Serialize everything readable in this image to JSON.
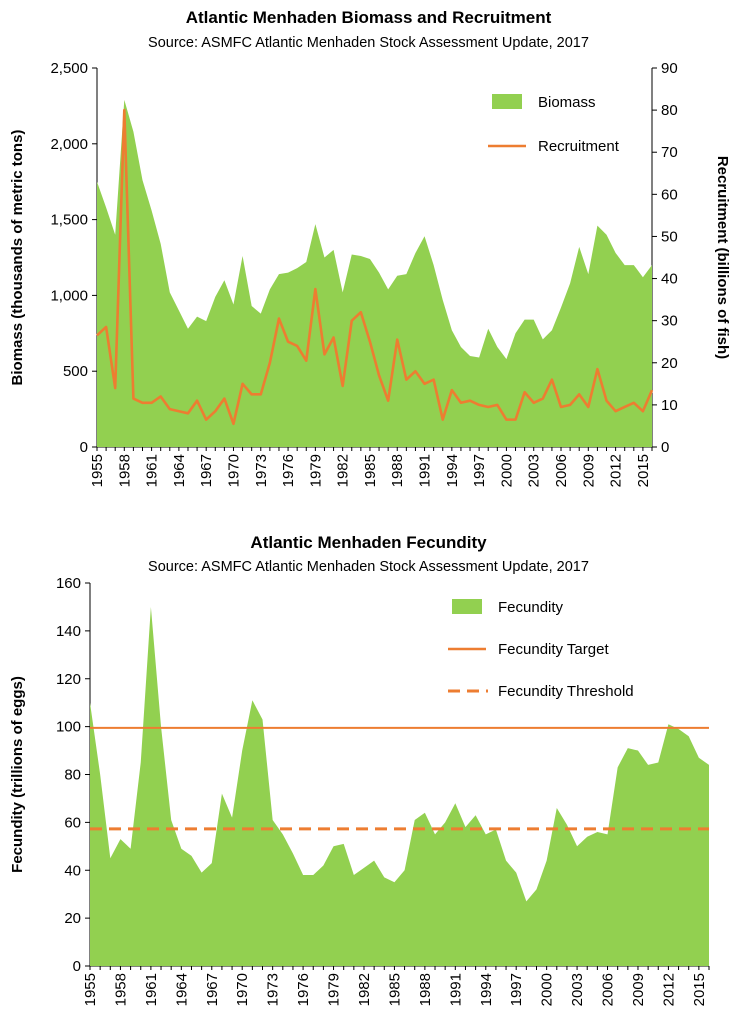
{
  "chart_data": [
    {
      "type": "area",
      "title": "Atlantic Menhaden Biomass and Recruitment",
      "subtitle": "Source: ASMFC Atlantic Menhaden Stock Assessment Update, 2017",
      "ylabel": "Biomass (thousands of metric tons)",
      "y2label": "Recruitment (billions of fish)",
      "ylim": [
        0,
        2500
      ],
      "y2lim": [
        0,
        90
      ],
      "yticks": [
        "0",
        "500",
        "1,000",
        "1,500",
        "2,000",
        "2,500"
      ],
      "y2ticks": [
        "0",
        "10",
        "20",
        "30",
        "40",
        "50",
        "60",
        "70",
        "80",
        "90"
      ],
      "xticks": [
        "1955",
        "1958",
        "1961",
        "1964",
        "1967",
        "1970",
        "1973",
        "1976",
        "1979",
        "1982",
        "1985",
        "1988",
        "1991",
        "1994",
        "1997",
        "2000",
        "2003",
        "2006",
        "2009",
        "2012",
        "2015"
      ],
      "x_start": 1955,
      "x_end": 2016,
      "legend_position": "top-right",
      "series": [
        {
          "name": "Biomass",
          "type": "area",
          "color": "#92d050",
          "axis": "left",
          "values": [
            1750,
            1580,
            1400,
            2290,
            2080,
            1760,
            1560,
            1340,
            1020,
            900,
            780,
            860,
            830,
            990,
            1100,
            940,
            1260,
            930,
            880,
            1040,
            1140,
            1150,
            1180,
            1220,
            1470,
            1250,
            1300,
            1020,
            1270,
            1260,
            1240,
            1150,
            1040,
            1130,
            1140,
            1280,
            1390,
            1200,
            970,
            770,
            660,
            600,
            590,
            780,
            660,
            580,
            750,
            840,
            840,
            710,
            770,
            920,
            1080,
            1320,
            1140,
            1460,
            1400,
            1280,
            1200,
            1200,
            1120,
            1200
          ]
        },
        {
          "name": "Recruitment",
          "type": "line",
          "color": "#ed7d31",
          "axis": "right",
          "values": [
            26.5,
            28.5,
            14,
            80,
            11.5,
            10.5,
            10.5,
            12,
            9,
            8.5,
            8,
            11,
            6.5,
            8.5,
            11.5,
            5.5,
            15,
            12.5,
            12.5,
            20,
            30.5,
            25,
            24,
            20.5,
            37.5,
            22,
            26,
            14.5,
            30,
            32,
            25,
            17,
            11,
            25.5,
            16,
            18,
            15,
            16,
            6.5,
            13.5,
            10.5,
            11,
            10,
            9.5,
            10,
            6.5,
            6.5,
            13,
            10.5,
            11.5,
            16,
            9.5,
            10,
            12.5,
            9.5,
            18.5,
            11,
            8.5,
            9.5,
            10.5,
            8.5,
            13.5
          ]
        }
      ]
    },
    {
      "type": "area",
      "title": "Atlantic Menhaden Fecundity",
      "subtitle": "Source: ASMFC Atlantic Menhaden Stock Assessment Update, 2017",
      "ylabel": "Fecundity (trillions of eggs)",
      "ylim": [
        0,
        160
      ],
      "yticks": [
        "0",
        "20",
        "40",
        "60",
        "80",
        "100",
        "120",
        "140",
        "160"
      ],
      "xticks": [
        "1955",
        "1958",
        "1961",
        "1964",
        "1967",
        "1970",
        "1973",
        "1976",
        "1979",
        "1982",
        "1985",
        "1988",
        "1991",
        "1994",
        "1997",
        "2000",
        "2003",
        "2006",
        "2009",
        "2012",
        "2015"
      ],
      "x_start": 1955,
      "x_end": 2016,
      "legend_position": "top-right",
      "series": [
        {
          "name": "Fecundity",
          "type": "area",
          "color": "#92d050",
          "values": [
            110,
            80,
            45,
            53,
            49,
            85,
            150,
            100,
            61,
            49,
            46,
            39,
            43,
            72,
            62,
            90,
            111,
            103,
            61,
            55,
            47,
            38,
            38,
            42,
            50,
            51,
            38,
            41,
            44,
            37,
            35,
            40,
            61,
            64,
            55,
            60,
            68,
            58,
            63,
            55,
            57,
            44,
            39,
            27,
            32,
            44,
            66,
            59,
            50,
            54,
            56,
            55,
            83,
            91,
            90,
            84,
            85,
            101,
            99,
            96,
            87,
            84
          ]
        },
        {
          "name": "Fecundity Target",
          "type": "line",
          "style": "solid",
          "color": "#ed7d31",
          "value": 99.5
        },
        {
          "name": "Fecundity Threshold",
          "type": "line",
          "style": "dashed",
          "color": "#ed7d31",
          "value": 57.3
        }
      ]
    }
  ]
}
